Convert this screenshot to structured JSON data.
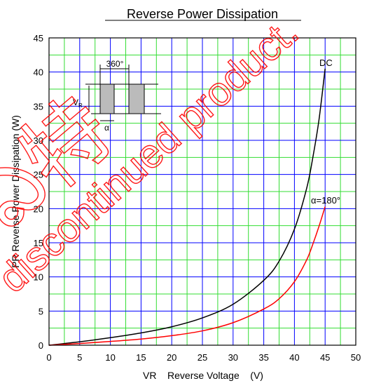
{
  "chart_data": {
    "type": "line",
    "title": "Reverse Power Dissipation",
    "xlabel": "VR    Reverse Voltage    (V)",
    "ylabel": "PR    Reverse  Power  Dissipation       (W)",
    "xlim": [
      0,
      50
    ],
    "ylim": [
      0,
      45
    ],
    "xticks": [
      "0",
      "5",
      "10",
      "15",
      "20",
      "25",
      "30",
      "35",
      "40",
      "45",
      "50"
    ],
    "yticks": [
      "0",
      "5",
      "10",
      "15",
      "20",
      "25",
      "30",
      "35",
      "40",
      "45"
    ],
    "grid": true,
    "minor_grid_color": "#33dd33",
    "major_grid_color": "#0000ff",
    "series": [
      {
        "name": "DC",
        "color": "#000000",
        "x": [
          0,
          5,
          10,
          15,
          20,
          25,
          30,
          35,
          37.5,
          40,
          42,
          43,
          44,
          45
        ],
        "y": [
          0,
          0.5,
          1.1,
          1.8,
          2.7,
          4.0,
          6.0,
          9.5,
          12.3,
          17.0,
          23.0,
          27.5,
          33.0,
          40.5
        ]
      },
      {
        "name": "α=180°",
        "color": "#ff0000",
        "x": [
          0,
          5,
          10,
          15,
          20,
          25,
          30,
          35,
          37.5,
          40,
          42,
          43,
          44,
          45
        ],
        "y": [
          0,
          0.25,
          0.55,
          0.9,
          1.4,
          2.1,
          3.3,
          5.3,
          6.8,
          9.3,
          12.5,
          14.8,
          17.4,
          20.3
        ]
      }
    ],
    "inset": {
      "angle_label": "360°",
      "vr_label": "V",
      "vr_sub": "R",
      "alpha_label": "α"
    },
    "watermark": {
      "text": "discontinued product.",
      "chars": "ఏ特"
    }
  }
}
